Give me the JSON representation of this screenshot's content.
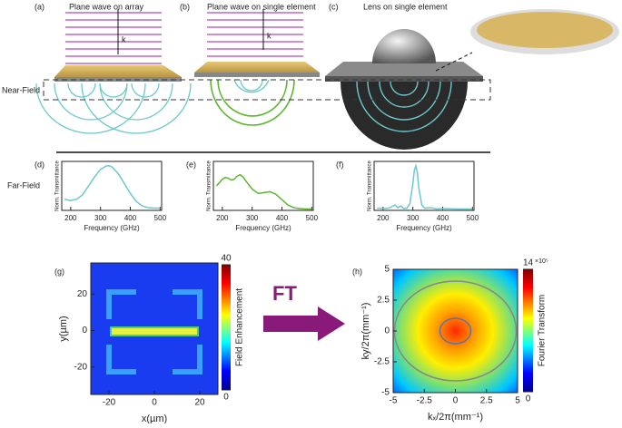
{
  "figure": {
    "panel_labels": [
      "(a)",
      "(b)",
      "(c)",
      "(d)",
      "(e)",
      "(f)",
      "(g)",
      "(h)"
    ],
    "titles": [
      "Plane wave on array",
      "Plane wave on single element",
      "Lens on single element"
    ],
    "near_field": "Near-Field",
    "far_field": "Far-Field",
    "ft": "FT",
    "k": "k"
  },
  "chart_data": [
    {
      "type": "line",
      "ylabel": "Norm. Transmittance",
      "xlabel": "Frequency (GHz)",
      "x": [
        180,
        200,
        220,
        240,
        260,
        280,
        300,
        320,
        330,
        340,
        360,
        380,
        400,
        420,
        440,
        460,
        480,
        500
      ],
      "series": [
        {
          "color": "#6cc8cc",
          "values": [
            0.25,
            0.22,
            0.25,
            0.35,
            0.55,
            0.75,
            0.92,
            1.0,
            1.0,
            0.97,
            0.82,
            0.6,
            0.38,
            0.2,
            0.1,
            0.06,
            0.05,
            0.05
          ]
        }
      ],
      "xlim": [
        170,
        505
      ],
      "xticks": [
        200,
        300,
        400,
        500
      ],
      "ylim": [
        0,
        1.1
      ]
    },
    {
      "type": "line",
      "ylabel": "Norm. Transmittance",
      "xlabel": "Frequency (GHz)",
      "x": [
        180,
        190,
        200,
        210,
        220,
        230,
        240,
        250,
        260,
        270,
        280,
        300,
        320,
        340,
        360,
        380,
        400,
        420,
        440,
        460,
        480,
        500
      ],
      "series": [
        {
          "color": "#5cb531",
          "values": [
            0.55,
            0.62,
            0.7,
            0.74,
            0.72,
            0.68,
            0.7,
            0.77,
            0.8,
            0.75,
            0.65,
            0.48,
            0.38,
            0.4,
            0.42,
            0.36,
            0.24,
            0.12,
            0.06,
            0.04,
            0.03,
            0.03
          ]
        }
      ],
      "xlim": [
        170,
        505
      ],
      "xticks": [
        200,
        300,
        400,
        500
      ],
      "ylim": [
        0,
        1.1
      ]
    },
    {
      "type": "line",
      "ylabel": "Norm. Transmittance",
      "xlabel": "Frequency (GHz)",
      "x": [
        180,
        200,
        220,
        240,
        250,
        260,
        270,
        280,
        290,
        300,
        305,
        310,
        315,
        320,
        330,
        340,
        360,
        380,
        400,
        450,
        500
      ],
      "series": [
        {
          "color": "#6cc8cc",
          "values": [
            0.05,
            0.04,
            0.05,
            0.12,
            0.06,
            0.1,
            0.04,
            0.05,
            0.15,
            0.6,
            0.9,
            1.0,
            0.85,
            0.5,
            0.12,
            0.05,
            0.06,
            0.03,
            0.04,
            0.03,
            0.03
          ]
        }
      ],
      "xlim": [
        170,
        505
      ],
      "xticks": [
        200,
        300,
        400,
        500
      ],
      "ylim": [
        0,
        1.1
      ]
    },
    {
      "type": "heatmap",
      "xlabel": "x(µm)",
      "ylabel": "y(µm)",
      "xlim": [
        -28,
        28
      ],
      "ylim": [
        -35,
        37
      ],
      "xticks": [
        -20,
        0,
        20
      ],
      "yticks": [
        -20,
        0,
        20
      ],
      "colorbar": {
        "label": "Field Enhancement",
        "lim": [
          0,
          40
        ],
        "ticks": [
          0,
          40
        ]
      }
    },
    {
      "type": "heatmap",
      "xlabel": "kₓ/2π(mm⁻¹)",
      "ylabel": "ky/2π(mm⁻¹)",
      "xlim": [
        -5,
        5
      ],
      "ylim": [
        -5,
        5
      ],
      "xticks": [
        -5,
        -2.5,
        0,
        2.5,
        5
      ],
      "yticks": [
        -5,
        -2.5,
        0,
        2.5,
        5
      ],
      "colorbar": {
        "label": "Fourier Transform",
        "lim": [
          0,
          14
        ],
        "ticks": [
          0,
          14
        ],
        "exponent": "×10⁵"
      }
    }
  ]
}
